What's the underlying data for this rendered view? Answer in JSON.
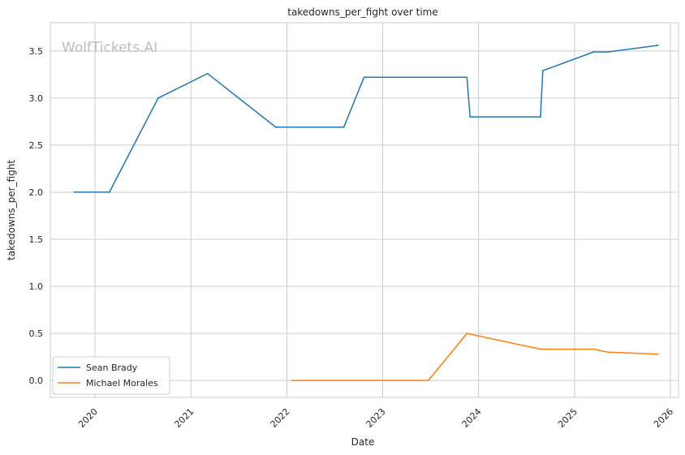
{
  "chart_data": {
    "type": "line",
    "title": "takedowns_per_fight over time",
    "xlabel": "Date",
    "ylabel": "takedowns_per_fight",
    "watermark": "WolfTickets.AI",
    "x_type": "date",
    "xlim": [
      "2019-07-15",
      "2026-02-01"
    ],
    "ylim": [
      -0.18,
      3.8
    ],
    "x_ticks": [
      "2020",
      "2021",
      "2022",
      "2023",
      "2024",
      "2025",
      "2026"
    ],
    "y_ticks": [
      "0.0",
      "0.5",
      "1.0",
      "1.5",
      "2.0",
      "2.5",
      "3.0",
      "3.5"
    ],
    "grid": true,
    "legend_position": "lower-left",
    "series": [
      {
        "name": "Sean Brady",
        "color": "#1f77b4",
        "points": [
          {
            "x": "2019-10-15",
            "y": 2.0
          },
          {
            "x": "2020-02-25",
            "y": 2.0
          },
          {
            "x": "2020-08-29",
            "y": 3.0
          },
          {
            "x": "2021-03-05",
            "y": 3.26
          },
          {
            "x": "2021-11-20",
            "y": 2.69
          },
          {
            "x": "2022-08-06",
            "y": 2.69
          },
          {
            "x": "2022-10-22",
            "y": 3.22
          },
          {
            "x": "2023-11-18",
            "y": 3.22
          },
          {
            "x": "2023-11-30",
            "y": 2.8
          },
          {
            "x": "2024-08-24",
            "y": 2.8
          },
          {
            "x": "2024-09-02",
            "y": 3.29
          },
          {
            "x": "2025-03-15",
            "y": 3.49
          },
          {
            "x": "2025-05-10",
            "y": 3.49
          },
          {
            "x": "2025-11-15",
            "y": 3.56
          }
        ]
      },
      {
        "name": "Michael Morales",
        "color": "#ff7f0e",
        "points": [
          {
            "x": "2022-01-20",
            "y": 0.0
          },
          {
            "x": "2023-06-24",
            "y": 0.0
          },
          {
            "x": "2023-11-18",
            "y": 0.5
          },
          {
            "x": "2024-08-24",
            "y": 0.333
          },
          {
            "x": "2025-03-15",
            "y": 0.333
          },
          {
            "x": "2025-05-10",
            "y": 0.3
          },
          {
            "x": "2025-11-15",
            "y": 0.28
          }
        ]
      }
    ]
  }
}
